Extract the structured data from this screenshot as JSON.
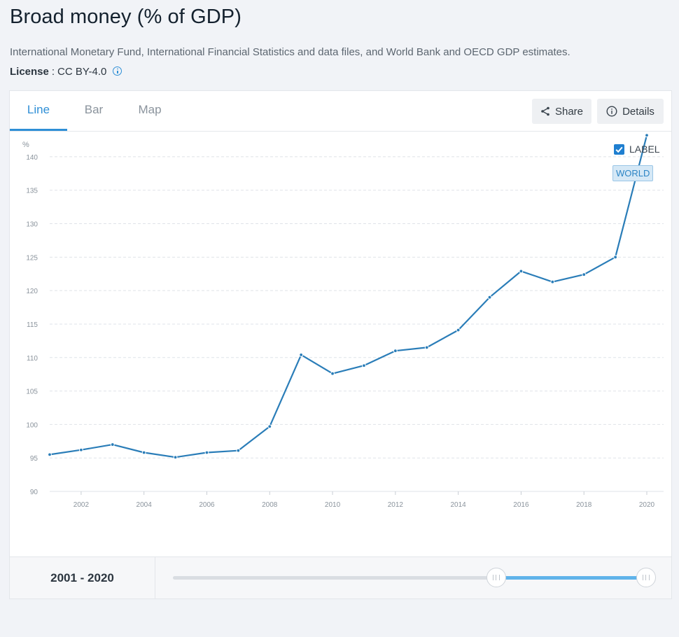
{
  "page": {
    "title": "Broad money (% of GDP)",
    "source": "International Monetary Fund, International Financial Statistics and data files, and World Bank and OECD GDP estimates.",
    "license_key": "License",
    "license_sep": ":",
    "license_value": "CC BY-4.0"
  },
  "tabs": [
    {
      "label": "Line",
      "active": true
    },
    {
      "label": "Bar",
      "active": false
    },
    {
      "label": "Map",
      "active": false
    }
  ],
  "toolbar": {
    "share_label": "Share",
    "details_label": "Details"
  },
  "legend": {
    "label_text": "LABEL",
    "checked": true,
    "series_tag": "WORLD"
  },
  "range": {
    "label": "2001 - 2020",
    "min_year": 1960,
    "max_year": 2020,
    "start_year": 2001,
    "end_year": 2020
  },
  "colors": {
    "line": "#2a7db8",
    "accent": "#2f8fd6",
    "slider_fill": "#5fb3ea"
  },
  "chart_data": {
    "type": "line",
    "title": "Broad money (% of GDP)",
    "ylabel": "%",
    "xlabel": "",
    "ylim": [
      90,
      140
    ],
    "yticks": [
      90,
      95,
      100,
      105,
      110,
      115,
      120,
      125,
      130,
      135,
      140
    ],
    "xlim": [
      2001,
      2020
    ],
    "xticks": [
      2002,
      2004,
      2006,
      2008,
      2010,
      2012,
      2014,
      2016,
      2018,
      2020
    ],
    "grid": true,
    "series": [
      {
        "name": "WORLD",
        "x": [
          2001,
          2002,
          2003,
          2004,
          2005,
          2006,
          2007,
          2008,
          2009,
          2010,
          2011,
          2012,
          2013,
          2014,
          2015,
          2016,
          2017,
          2018,
          2019,
          2020
        ],
        "values": [
          95.5,
          96.2,
          97.0,
          95.8,
          95.1,
          95.8,
          96.1,
          99.7,
          110.4,
          107.6,
          108.8,
          111.0,
          111.5,
          114.1,
          119.0,
          122.9,
          121.3,
          122.4,
          125.0,
          143.2
        ]
      }
    ]
  }
}
